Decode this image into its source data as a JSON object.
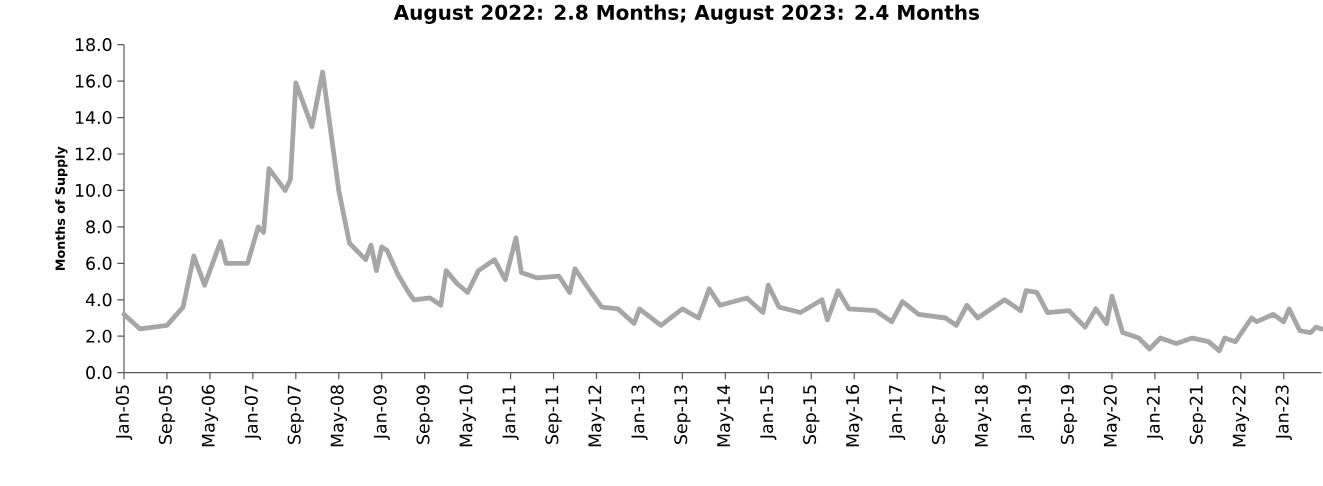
{
  "chart_data": {
    "type": "line",
    "title": "August 2022: 2.8 Months; August 2023: 2.4 Months",
    "ylabel": "Months of Supply",
    "x": [
      "2005-01",
      "2005-04",
      "2005-09",
      "2005-12",
      "2006-02",
      "2006-04",
      "2006-07",
      "2006-08",
      "2006-12",
      "2007-02",
      "2007-03",
      "2007-04",
      "2007-07",
      "2007-08",
      "2007-09",
      "2007-12",
      "2008-02",
      "2008-05",
      "2008-07",
      "2008-10",
      "2008-11",
      "2008-12",
      "2009-01",
      "2009-02",
      "2009-04",
      "2009-06",
      "2009-07",
      "2009-10",
      "2009-12",
      "2010-01",
      "2010-03",
      "2010-05",
      "2010-07",
      "2010-10",
      "2010-12",
      "2011-02",
      "2011-03",
      "2011-06",
      "2011-10",
      "2011-12",
      "2012-01",
      "2012-04",
      "2012-06",
      "2012-09",
      "2012-12",
      "2013-01",
      "2013-05",
      "2013-09",
      "2013-12",
      "2014-02",
      "2014-04",
      "2014-09",
      "2014-12",
      "2015-01",
      "2015-03",
      "2015-07",
      "2015-11",
      "2015-12",
      "2016-02",
      "2016-04",
      "2016-09",
      "2016-12",
      "2017-02",
      "2017-05",
      "2017-10",
      "2017-12",
      "2018-02",
      "2018-04",
      "2018-09",
      "2018-12",
      "2019-01",
      "2019-03",
      "2019-05",
      "2019-09",
      "2019-12",
      "2020-02",
      "2020-04",
      "2020-05",
      "2020-07",
      "2020-10",
      "2020-12",
      "2021-02",
      "2021-05",
      "2021-08",
      "2021-11",
      "2022-01",
      "2022-02",
      "2022-04",
      "2022-07",
      "2022-08",
      "2022-11",
      "2023-01",
      "2023-02",
      "2023-04",
      "2023-06",
      "2023-07",
      "2023-08"
    ],
    "values": [
      3.2,
      2.4,
      2.6,
      3.6,
      6.4,
      4.8,
      7.2,
      6.0,
      6.0,
      8.0,
      7.7,
      11.2,
      10.0,
      10.6,
      15.9,
      13.5,
      16.5,
      10.0,
      7.1,
      6.2,
      7.0,
      5.6,
      6.9,
      6.7,
      5.4,
      4.4,
      4.0,
      4.1,
      3.7,
      5.6,
      4.9,
      4.4,
      5.6,
      6.2,
      5.1,
      7.4,
      5.5,
      5.2,
      5.3,
      4.4,
      5.7,
      4.4,
      3.6,
      3.5,
      2.7,
      3.5,
      2.6,
      3.5,
      3.0,
      4.6,
      3.7,
      4.1,
      3.3,
      4.8,
      3.6,
      3.3,
      4.0,
      2.9,
      4.5,
      3.5,
      3.4,
      2.8,
      3.9,
      3.2,
      3.0,
      2.6,
      3.7,
      3.0,
      4.0,
      3.4,
      4.5,
      4.4,
      3.3,
      3.4,
      2.5,
      3.5,
      2.7,
      4.2,
      2.2,
      1.9,
      1.3,
      1.9,
      1.6,
      1.9,
      1.7,
      1.2,
      1.9,
      1.7,
      3.0,
      2.8,
      3.2,
      2.8,
      3.5,
      2.3,
      2.2,
      2.5,
      2.4
    ],
    "color": "#a6a6a6",
    "line_style": "solid",
    "xlim": [
      "2005-01",
      "2023-08"
    ],
    "xticks": [
      {
        "value": "2005-01",
        "label": "Jan-05"
      },
      {
        "value": "2005-09",
        "label": "Sep-05"
      },
      {
        "value": "2006-05",
        "label": "May-06"
      },
      {
        "value": "2007-01",
        "label": "Jan-07"
      },
      {
        "value": "2007-09",
        "label": "Sep-07"
      },
      {
        "value": "2008-05",
        "label": "May-08"
      },
      {
        "value": "2009-01",
        "label": "Jan-09"
      },
      {
        "value": "2009-09",
        "label": "Sep-09"
      },
      {
        "value": "2010-05",
        "label": "May-10"
      },
      {
        "value": "2011-01",
        "label": "Jan-11"
      },
      {
        "value": "2011-09",
        "label": "Sep-11"
      },
      {
        "value": "2012-05",
        "label": "May-12"
      },
      {
        "value": "2013-01",
        "label": "Jan-13"
      },
      {
        "value": "2013-09",
        "label": "Sep-13"
      },
      {
        "value": "2014-05",
        "label": "May-14"
      },
      {
        "value": "2015-01",
        "label": "Jan-15"
      },
      {
        "value": "2015-09",
        "label": "Sep-15"
      },
      {
        "value": "2016-05",
        "label": "May-16"
      },
      {
        "value": "2017-01",
        "label": "Jan-17"
      },
      {
        "value": "2017-09",
        "label": "Sep-17"
      },
      {
        "value": "2018-05",
        "label": "May-18"
      },
      {
        "value": "2019-01",
        "label": "Jan-19"
      },
      {
        "value": "2019-09",
        "label": "Sep-19"
      },
      {
        "value": "2020-05",
        "label": "May-20"
      },
      {
        "value": "2021-01",
        "label": "Jan-21"
      },
      {
        "value": "2021-09",
        "label": "Sep-21"
      },
      {
        "value": "2022-05",
        "label": "May-22"
      },
      {
        "value": "2023-01",
        "label": "Jan-23"
      }
    ],
    "ylim": [
      0,
      18
    ],
    "yticks": [
      {
        "value": 0,
        "label": "0.0"
      },
      {
        "value": 2,
        "label": "2.0"
      },
      {
        "value": 4,
        "label": "4.0"
      },
      {
        "value": 6,
        "label": "6.0"
      },
      {
        "value": 8,
        "label": "8.0"
      },
      {
        "value": 10,
        "label": "10.0"
      },
      {
        "value": 12,
        "label": "12.0"
      },
      {
        "value": 14,
        "label": "14.0"
      },
      {
        "value": 16,
        "label": "16.0"
      },
      {
        "value": 18,
        "label": "18.0"
      }
    ],
    "grid": false
  }
}
